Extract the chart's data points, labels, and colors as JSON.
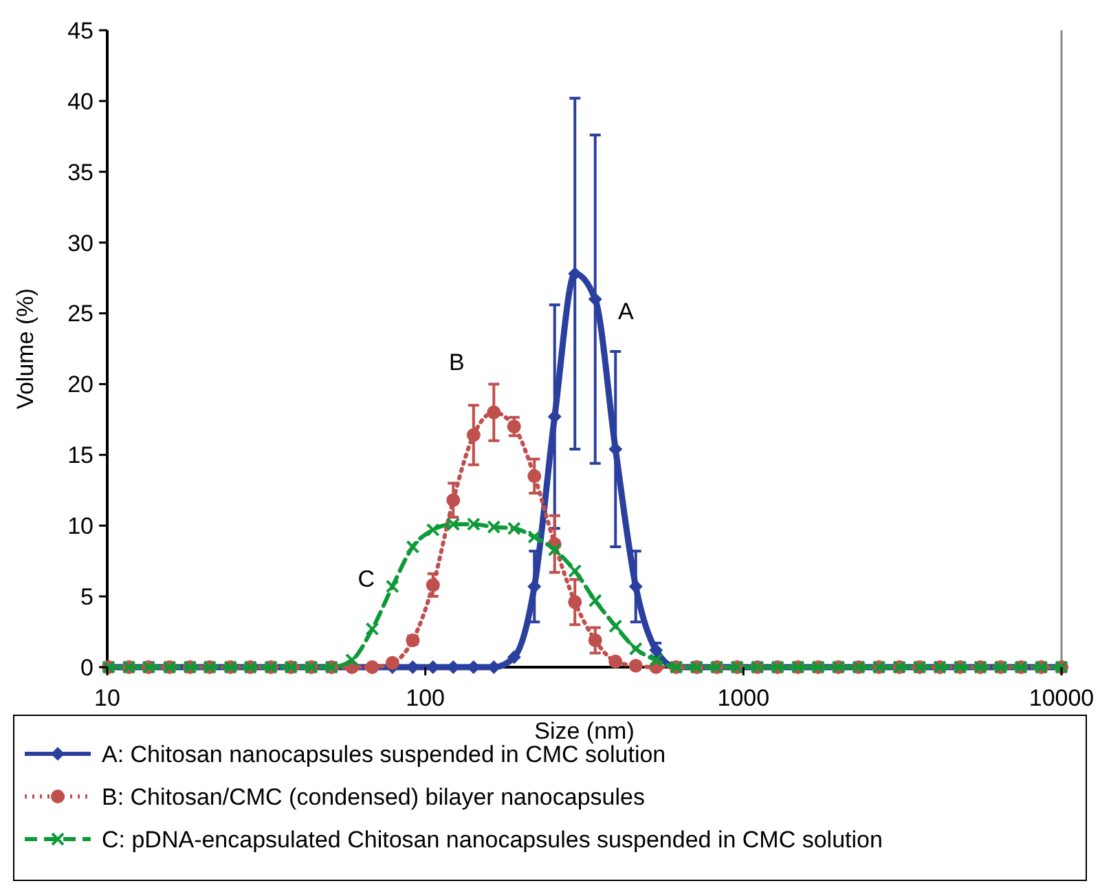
{
  "chart_data": {
    "type": "line",
    "xlabel": "Size (nm)",
    "ylabel": "Volume (%)",
    "log": "x",
    "xlim": [
      10,
      10000
    ],
    "xticks": [
      10,
      100,
      1000,
      10000
    ],
    "ylim": [
      0,
      45
    ],
    "yticks": [
      0,
      5,
      10,
      15,
      20,
      25,
      30,
      35,
      40,
      45
    ],
    "grid": false,
    "legend": "bottom",
    "x": [
      10.1,
      11.7,
      13.5,
      15.7,
      18.2,
      21.0,
      24.4,
      28.2,
      32.7,
      37.8,
      43.8,
      50.7,
      58.8,
      68.1,
      78.8,
      91.3,
      105.7,
      122.4,
      141.8,
      164.2,
      190.1,
      220.2,
      255.0,
      295.3,
      342.0,
      396.1,
      458.7,
      531.2,
      615.1,
      712.4,
      825.0,
      955.4,
      1106,
      1281,
      1484,
      1718,
      1990,
      2305,
      2669,
      3091,
      3580,
      4145,
      4801,
      5560,
      6439,
      7456,
      8635,
      10000
    ],
    "series": [
      {
        "name": "A: Chitosan nanocapsules suspended in CMC solution",
        "color": "#2b3f9e",
        "marker": "diamond",
        "line_style": "solid",
        "values": [
          0,
          0,
          0,
          0,
          0,
          0,
          0,
          0,
          0,
          0,
          0,
          0,
          0,
          0,
          0,
          0,
          0,
          0,
          0,
          0,
          0.7,
          5.7,
          17.7,
          27.8,
          26.0,
          15.4,
          5.7,
          1.2,
          0,
          0,
          0,
          0,
          0,
          0,
          0,
          0,
          0,
          0,
          0,
          0,
          0,
          0,
          0,
          0,
          0,
          0,
          0,
          0
        ],
        "errors": [
          null,
          null,
          null,
          null,
          null,
          null,
          null,
          null,
          null,
          null,
          null,
          null,
          null,
          null,
          null,
          null,
          null,
          null,
          null,
          null,
          null,
          2.5,
          7.9,
          12.4,
          11.6,
          6.9,
          2.5,
          0.5,
          null,
          null,
          null,
          null,
          null,
          null,
          null,
          null,
          null,
          null,
          null,
          null,
          null,
          null,
          null,
          null,
          null,
          null,
          null,
          null
        ]
      },
      {
        "name": "B: Chitosan/CMC (condensed) bilayer nanocapsules",
        "color": "#c0504d",
        "marker": "circle",
        "line_style": "dotted",
        "values": [
          0,
          0,
          0,
          0,
          0,
          0,
          0,
          0,
          0,
          0,
          0,
          0,
          0,
          0,
          0.3,
          1.9,
          5.8,
          11.8,
          16.4,
          18.0,
          17.0,
          13.5,
          8.7,
          4.6,
          1.9,
          0.4,
          0.1,
          0,
          0,
          0,
          0,
          0,
          0,
          0,
          0,
          0,
          0,
          0,
          0,
          0,
          0,
          0,
          0,
          0,
          0,
          0,
          0,
          0
        ],
        "errors": [
          null,
          null,
          null,
          null,
          null,
          null,
          null,
          null,
          null,
          null,
          null,
          null,
          null,
          null,
          null,
          0.3,
          0.8,
          1.2,
          2.1,
          2.0,
          0.65,
          1.2,
          2.0,
          1.6,
          0.9,
          null,
          null,
          null,
          null,
          null,
          null,
          null,
          null,
          null,
          null,
          null,
          null,
          null,
          null,
          null,
          null,
          null,
          null,
          null,
          null,
          null,
          null,
          null
        ]
      },
      {
        "name": "C: pDNA-encapsulated Chitosan nanocapsules suspended in CMC solution",
        "color": "#0f9a3a",
        "marker": "cross",
        "line_style": "dashed",
        "values": [
          0,
          0,
          0,
          0,
          0,
          0,
          0,
          0,
          0,
          0,
          0,
          0,
          0.5,
          2.7,
          5.7,
          8.5,
          9.7,
          10.1,
          10.1,
          9.9,
          9.8,
          9.2,
          8.3,
          6.8,
          4.7,
          2.9,
          1.3,
          0.5,
          0,
          0,
          0,
          0,
          0,
          0,
          0,
          0,
          0,
          0,
          0,
          0,
          0,
          0,
          0,
          0,
          0,
          0,
          0,
          0
        ]
      }
    ],
    "annotations": [
      {
        "text": "A",
        "x": 295.3,
        "y": 27.8
      },
      {
        "text": "B",
        "x": 164.2,
        "y": 18.0
      },
      {
        "text": "C",
        "x": 78.8,
        "y": 5.7
      }
    ]
  }
}
